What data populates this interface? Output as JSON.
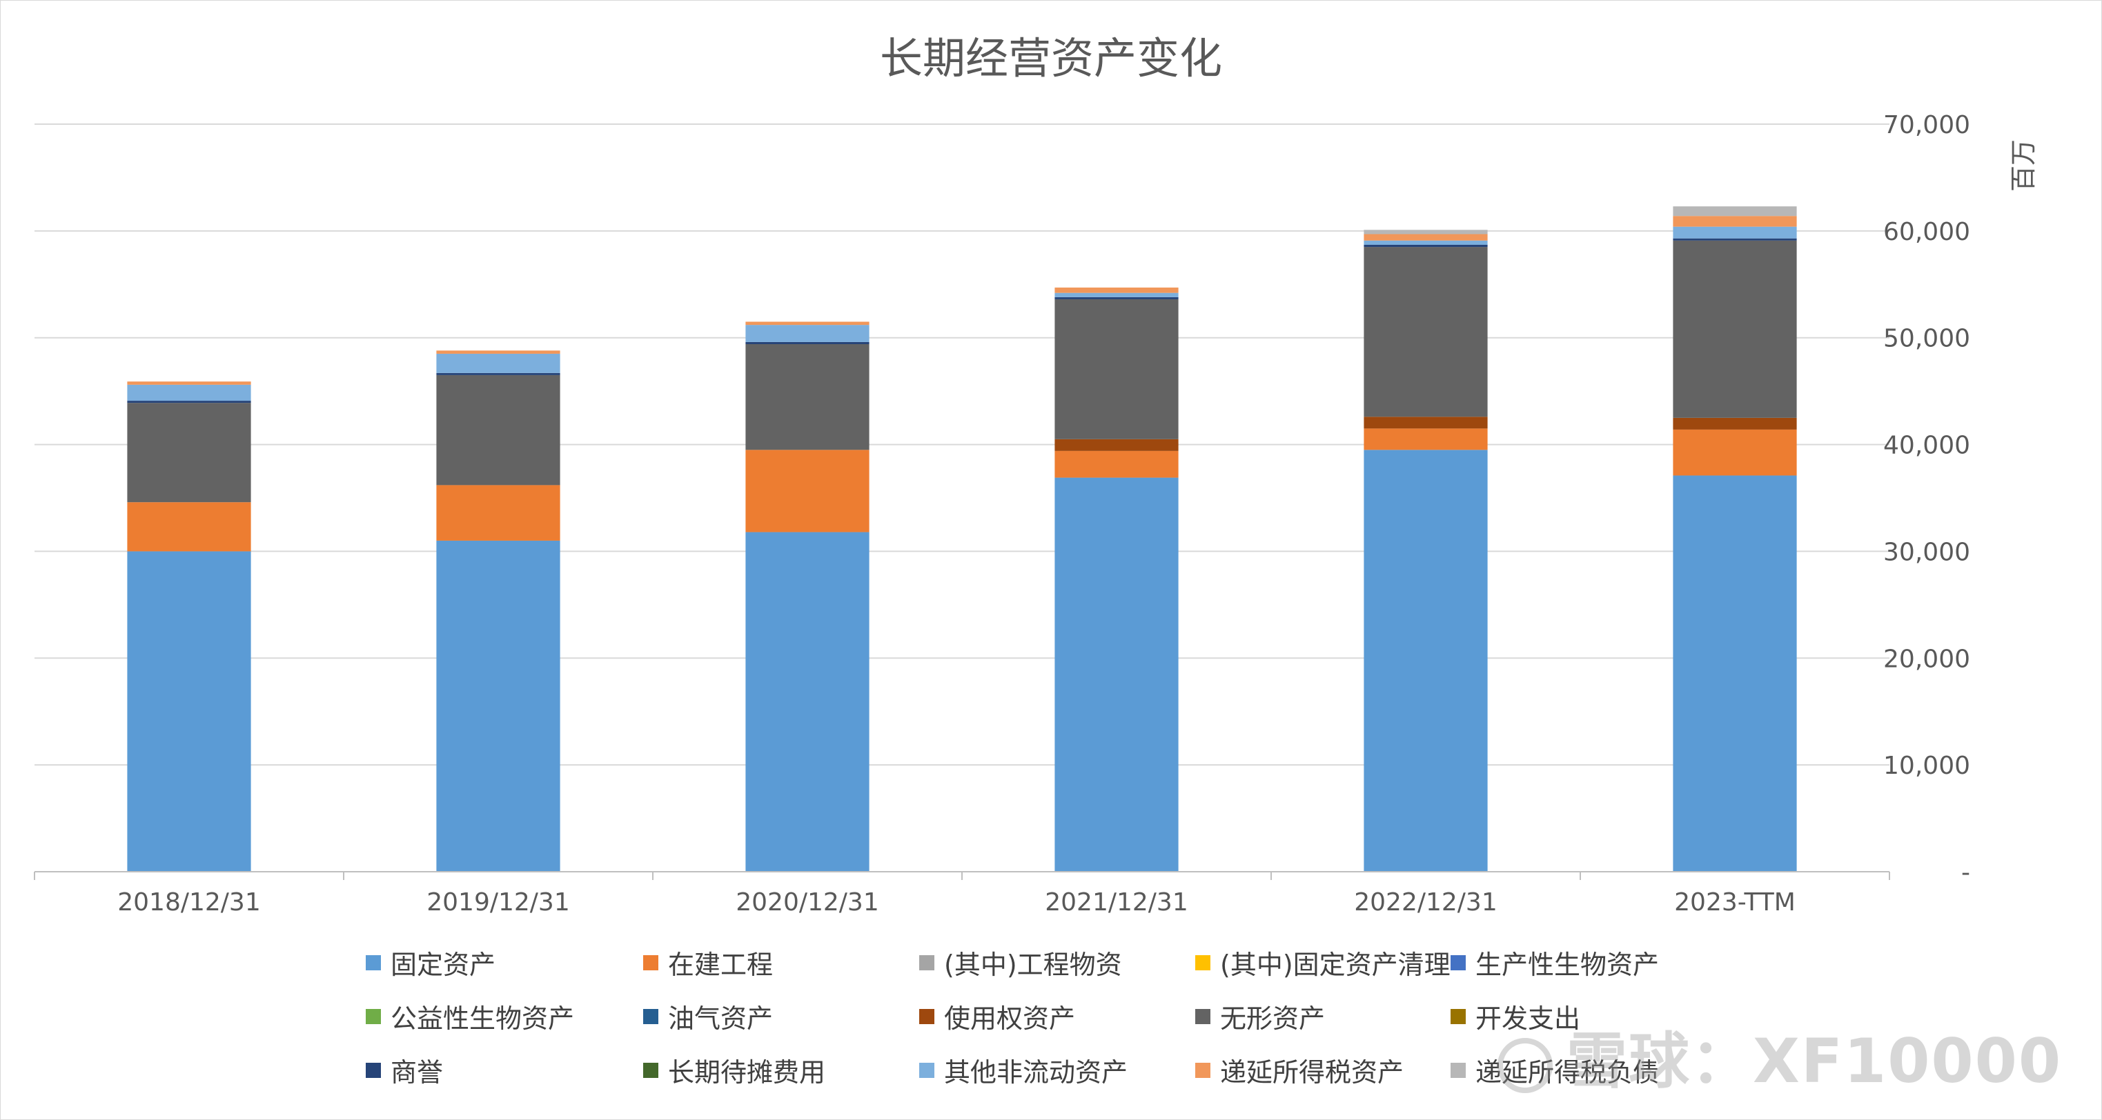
{
  "chart_data": {
    "type": "bar",
    "stacked": true,
    "title": "长期经营资产变化",
    "y_unit_label": "百万",
    "y_axis_position": "right",
    "ylim": [
      0,
      70000
    ],
    "y_ticks": [
      0,
      10000,
      20000,
      30000,
      40000,
      50000,
      60000,
      70000
    ],
    "y_tick_labels": [
      "-",
      "10,000",
      "20,000",
      "30,000",
      "40,000",
      "50,000",
      "60,000",
      "70,000"
    ],
    "grid": true,
    "legend_position": "bottom",
    "categories": [
      "2018/12/31",
      "2019/12/31",
      "2020/12/31",
      "2021/12/31",
      "2022/12/31",
      "2023-TTM"
    ],
    "series": [
      {
        "name": "固定资产",
        "color": "#5b9bd5",
        "values": [
          30000,
          31000,
          31800,
          36900,
          39500,
          37100
        ]
      },
      {
        "name": "在建工程",
        "color": "#ed7d31",
        "values": [
          4600,
          5200,
          7700,
          2500,
          2000,
          4300
        ]
      },
      {
        "name": "(其中)工程物资",
        "color": "#a5a5a5",
        "values": [
          0,
          0,
          0,
          0,
          0,
          0
        ]
      },
      {
        "name": "(其中)固定资产清理",
        "color": "#ffc000",
        "values": [
          0,
          0,
          0,
          0,
          0,
          0
        ]
      },
      {
        "name": "生产性生物资产",
        "color": "#4472c4",
        "values": [
          0,
          0,
          0,
          0,
          0,
          0
        ]
      },
      {
        "name": "公益性生物资产",
        "color": "#70ad47",
        "values": [
          0,
          0,
          0,
          0,
          0,
          0
        ]
      },
      {
        "name": "油气资产",
        "color": "#255e91",
        "values": [
          0,
          0,
          0,
          0,
          0,
          0
        ]
      },
      {
        "name": "使用权资产",
        "color": "#9e480e",
        "values": [
          0,
          0,
          0,
          1100,
          1100,
          1100
        ]
      },
      {
        "name": "无形资产",
        "color": "#636363",
        "values": [
          9300,
          10300,
          9900,
          13100,
          15900,
          16600
        ]
      },
      {
        "name": "开发支出",
        "color": "#997300",
        "values": [
          0,
          0,
          0,
          0,
          0,
          0
        ]
      },
      {
        "name": "商誉",
        "color": "#264478",
        "values": [
          200,
          200,
          200,
          200,
          200,
          200
        ]
      },
      {
        "name": "长期待摊费用",
        "color": "#43682b",
        "values": [
          0,
          0,
          0,
          0,
          0,
          0
        ]
      },
      {
        "name": "其他非流动资产",
        "color": "#7cafdd",
        "values": [
          1500,
          1800,
          1600,
          400,
          400,
          1100
        ]
      },
      {
        "name": "递延所得税资产",
        "color": "#f1975a",
        "values": [
          300,
          300,
          300,
          500,
          600,
          1000
        ]
      },
      {
        "name": "递延所得税负债",
        "color": "#b7b7b7",
        "values": [
          0,
          0,
          0,
          0,
          400,
          900
        ]
      }
    ]
  },
  "watermark": {
    "text": "雪球：XF10000"
  }
}
